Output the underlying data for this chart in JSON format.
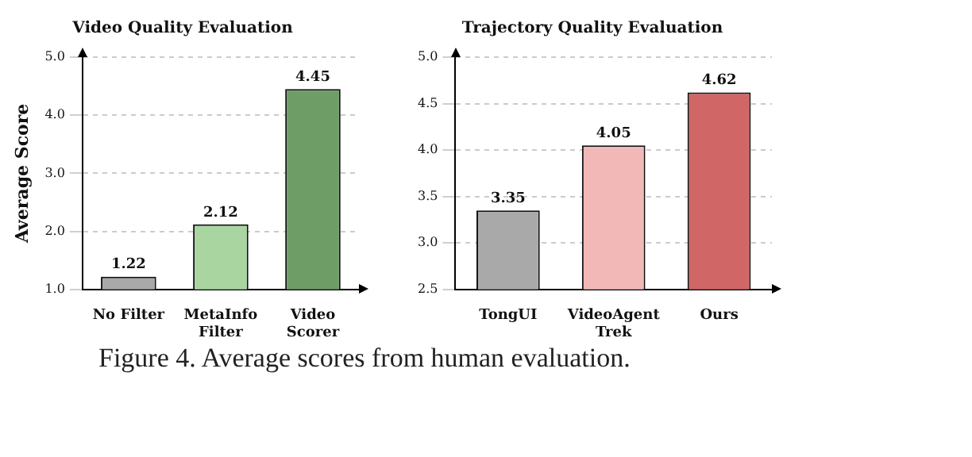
{
  "chart_data": [
    {
      "type": "bar",
      "title": "Video Quality Evaluation",
      "ylabel": "Average Score",
      "categories": [
        "No Filter",
        "MetaInfo Filter",
        "Video Scorer"
      ],
      "values": [
        1.22,
        2.12,
        4.45
      ],
      "colors": [
        "#a9a9a9",
        "#a8d5a0",
        "#6e9e66"
      ],
      "ylim": [
        1.0,
        5.0
      ],
      "yticks": [
        {
          "value": 1,
          "label": "1.0"
        },
        {
          "value": 2,
          "label": "2.0"
        },
        {
          "value": 3,
          "label": "3.0"
        },
        {
          "value": 4,
          "label": "4.0"
        },
        {
          "value": 5,
          "label": "5.0"
        }
      ],
      "grid": "y",
      "data_labels": true,
      "legend": false,
      "annotations": [
        "Figure 4. Average scores from human evaluation."
      ]
    },
    {
      "type": "bar",
      "title": "Trajectory Quality Evaluation",
      "categories": [
        "TongUI",
        "VideoAgent Trek",
        "Ours"
      ],
      "values": [
        3.35,
        4.05,
        4.62
      ],
      "colors": [
        "#a9a9a9",
        "#f2b8b8",
        "#d06666"
      ],
      "ylim": [
        2.5,
        5.0
      ],
      "yticks": [
        2.5,
        {
          "value": 3,
          "label": "3.0"
        },
        3.5,
        {
          "value": 4,
          "label": "4.0"
        },
        4.5,
        {
          "value": 5,
          "label": "5.0"
        }
      ],
      "grid": "y",
      "data_labels": true,
      "legend": false
    }
  ]
}
